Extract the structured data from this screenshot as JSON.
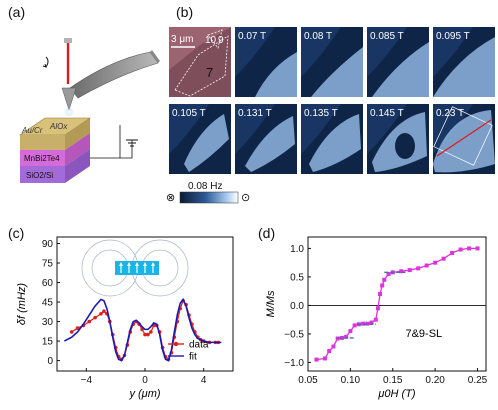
{
  "panel_labels": {
    "a": "(a)",
    "b": "(b)",
    "c": "(c)",
    "d": "(d)"
  },
  "panel_a": {
    "layers": [
      "Au/Cr",
      "AlOx",
      "MnBi2Te4",
      "SiO2/Si"
    ]
  },
  "panel_b": {
    "first_image": {
      "scale_bar": "3 μm",
      "region_labels": [
        "10",
        "9",
        "7"
      ]
    },
    "frames": [
      "0.07 T",
      "0.08 T",
      "0.085 T",
      "0.095 T",
      "0.105 T",
      "0.131 T",
      "0.135 T",
      "0.145 T",
      "0.23 T"
    ],
    "colorbar": {
      "label": "0.08 Hz",
      "left_symbol": "⊗",
      "right_symbol": "⊙"
    }
  },
  "chart_data": [
    {
      "panel": "c",
      "type": "line",
      "xlabel": "y (μm)",
      "ylabel": "δf (mHz)",
      "xlim": [
        -6,
        6
      ],
      "ylim": [
        -8,
        95
      ],
      "xticks": [
        -4,
        0,
        4
      ],
      "yticks": [
        0,
        15,
        30,
        45,
        60,
        75,
        90
      ],
      "legend": {
        "position": "bottom-right",
        "entries": [
          "data",
          "fit"
        ]
      },
      "series": [
        {
          "name": "data",
          "color": "#e0201b",
          "style": "line-with-markers",
          "x": [
            -5.0,
            -4.6,
            -4.2,
            -3.8,
            -3.4,
            -3.0,
            -2.8,
            -2.6,
            -2.4,
            -2.2,
            -2.0,
            -1.8,
            -1.6,
            -1.4,
            -1.2,
            -1.0,
            -0.8,
            -0.6,
            -0.4,
            -0.2,
            0.0,
            0.2,
            0.4,
            0.6,
            0.8,
            1.0,
            1.2,
            1.4,
            1.6,
            1.8,
            2.0,
            2.2,
            2.4,
            2.6,
            2.8,
            3.0,
            3.2,
            3.4,
            3.6,
            3.8,
            4.0,
            4.4,
            4.8,
            5.0
          ],
          "y": [
            22,
            25,
            27,
            30,
            33,
            36,
            38,
            36,
            30,
            20,
            10,
            3,
            1,
            4,
            12,
            22,
            28,
            30,
            28,
            24,
            20,
            20,
            22,
            27,
            27,
            22,
            10,
            3,
            1,
            6,
            18,
            30,
            40,
            46,
            43,
            35,
            28,
            22,
            18,
            16,
            15,
            14,
            14,
            14
          ]
        },
        {
          "name": "fit",
          "color": "#1a1ab2",
          "style": "line",
          "x": [
            -5.5,
            -5.0,
            -4.6,
            -4.2,
            -3.8,
            -3.4,
            -3.0,
            -2.8,
            -2.6,
            -2.4,
            -2.2,
            -2.0,
            -1.8,
            -1.6,
            -1.4,
            -1.2,
            -1.0,
            -0.8,
            -0.6,
            -0.4,
            -0.2,
            0.0,
            0.2,
            0.4,
            0.6,
            0.8,
            1.0,
            1.2,
            1.4,
            1.6,
            1.8,
            2.0,
            2.2,
            2.4,
            2.6,
            2.8,
            3.0,
            3.2,
            3.4,
            3.6,
            3.8,
            4.0,
            4.4,
            4.8,
            5.2
          ],
          "y": [
            15,
            18,
            22,
            28,
            35,
            42,
            47,
            46,
            40,
            30,
            18,
            7,
            1,
            0,
            4,
            14,
            24,
            30,
            31,
            29,
            26,
            24,
            24,
            26,
            29,
            28,
            20,
            8,
            1,
            0,
            8,
            22,
            35,
            44,
            47,
            42,
            33,
            25,
            20,
            17,
            16,
            15,
            14,
            14,
            14
          ]
        }
      ]
    },
    {
      "panel": "d",
      "type": "line",
      "xlabel": "μ0H (T)",
      "ylabel": "M/Ms",
      "xlim": [
        0.05,
        0.26
      ],
      "ylim": [
        -1.15,
        1.2
      ],
      "xticks": [
        0.05,
        0.1,
        0.15,
        0.2,
        0.25
      ],
      "yticks": [
        -1.0,
        -0.5,
        0.0,
        0.5,
        1.0
      ],
      "annotation": "7&9-SL",
      "series": [
        {
          "name": "",
          "color": "#dd33dd",
          "style": "line-with-markers",
          "x": [
            0.06,
            0.07,
            0.075,
            0.08,
            0.085,
            0.09,
            0.095,
            0.1,
            0.105,
            0.11,
            0.115,
            0.12,
            0.125,
            0.13,
            0.1325,
            0.135,
            0.1375,
            0.14,
            0.145,
            0.15,
            0.16,
            0.17,
            0.18,
            0.19,
            0.2,
            0.21,
            0.22,
            0.23,
            0.24,
            0.25
          ],
          "y": [
            -0.95,
            -0.93,
            -0.8,
            -0.72,
            -0.58,
            -0.57,
            -0.55,
            -0.45,
            -0.35,
            -0.33,
            -0.32,
            -0.32,
            -0.3,
            -0.25,
            -0.05,
            0.2,
            0.35,
            0.45,
            0.55,
            0.58,
            0.6,
            0.62,
            0.65,
            0.7,
            0.75,
            0.82,
            0.92,
            0.98,
            1.0,
            1.0
          ]
        }
      ],
      "reference_segments_color": "#4a6fa5"
    }
  ]
}
